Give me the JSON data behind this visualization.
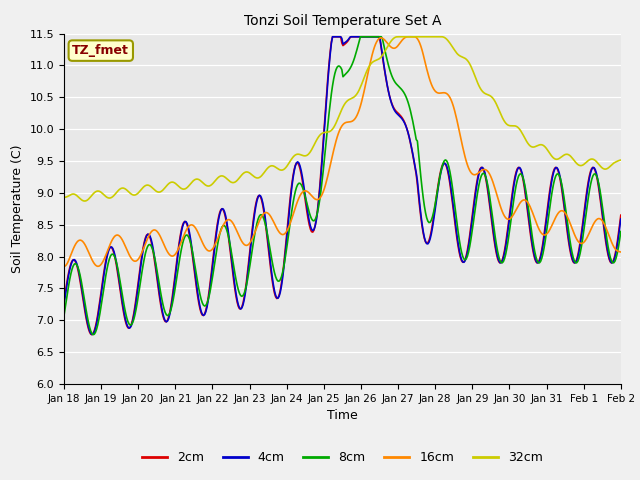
{
  "title": "Tonzi Soil Temperature Set A",
  "xlabel": "Time",
  "ylabel": "Soil Temperature (C)",
  "ylim": [
    6.0,
    11.5
  ],
  "annotation_text": "TZ_fmet",
  "annotation_bg": "#ffffcc",
  "annotation_border": "#999900",
  "annotation_fg": "#880000",
  "bg_color": "#e8e8e8",
  "legend_labels": [
    "2cm",
    "4cm",
    "8cm",
    "16cm",
    "32cm"
  ],
  "legend_colors": [
    "#dd0000",
    "#0000cc",
    "#00aa00",
    "#ff8800",
    "#cccc00"
  ],
  "x_tick_labels": [
    "Jan 18",
    "Jan 19",
    "Jan 20",
    "Jan 21",
    "Jan 22",
    "Jan 23",
    "Jan 24",
    "Jan 25",
    "Jan 26",
    "Jan 27",
    "Jan 28",
    "Jan 29",
    "Jan 30",
    "Jan 31",
    "Feb 1",
    "Feb 2"
  ],
  "n_points": 480
}
